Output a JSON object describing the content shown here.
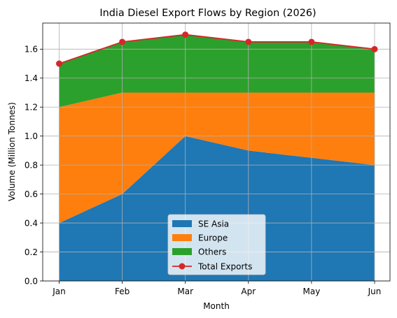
{
  "chart_data": {
    "type": "area",
    "title": "India Diesel Export Flows by Region (2026)",
    "xlabel": "Month",
    "ylabel": "Volume (Million Tonnes)",
    "categories": [
      "Jan",
      "Feb",
      "Mar",
      "Apr",
      "May",
      "Jun"
    ],
    "ylim": [
      0,
      1.78
    ],
    "yticks": [
      "0.0",
      "0.2",
      "0.4",
      "0.6",
      "0.8",
      "1.0",
      "1.2",
      "1.4",
      "1.6"
    ],
    "grid": true,
    "stacked": true,
    "legend_position": "bottom-center",
    "series": [
      {
        "name": "SE Asia",
        "values": [
          0.4,
          0.6,
          1.0,
          0.9,
          0.85,
          0.8
        ],
        "color": "#1f77b4"
      },
      {
        "name": "Europe",
        "values": [
          0.8,
          0.7,
          0.3,
          0.4,
          0.45,
          0.5
        ],
        "color": "#ff7f0e"
      },
      {
        "name": "Others",
        "values": [
          0.3,
          0.35,
          0.4,
          0.35,
          0.35,
          0.3
        ],
        "color": "#2ca02c"
      }
    ],
    "line_series": {
      "name": "Total Exports",
      "values": [
        1.5,
        1.65,
        1.7,
        1.65,
        1.65,
        1.6
      ],
      "color": "#d62728"
    }
  }
}
